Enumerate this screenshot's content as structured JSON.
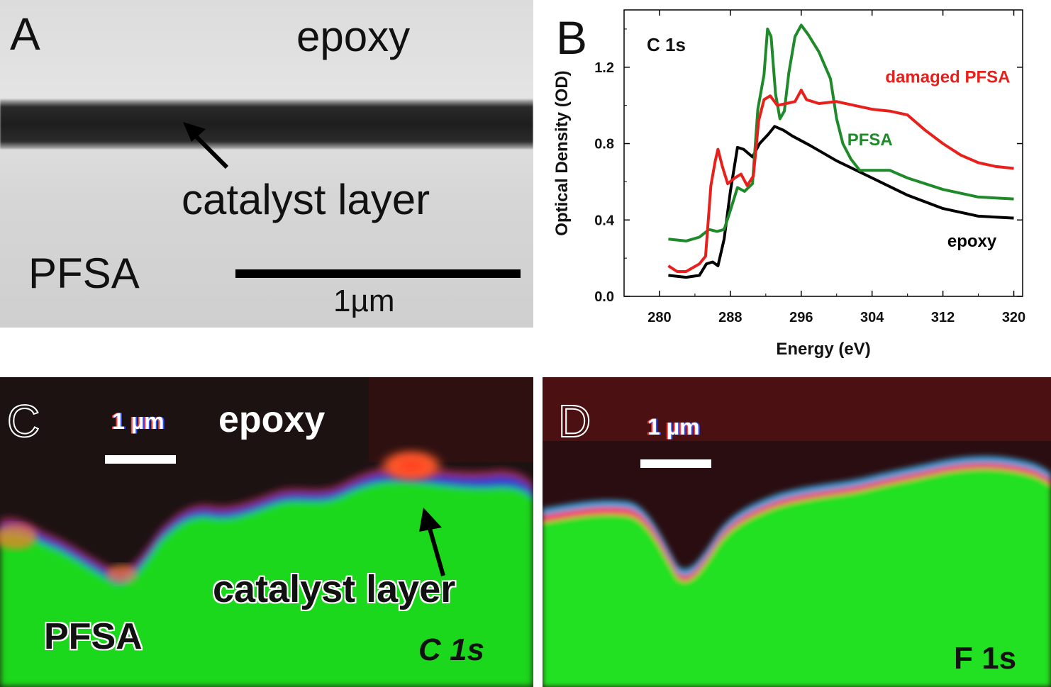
{
  "panel_a": {
    "letter": "A",
    "label_top": "epoxy",
    "label_layer": "catalyst layer",
    "label_bottom": "PFSA",
    "scale_label": "1µm"
  },
  "panel_c": {
    "letter": "C",
    "scale_label": "1 µm",
    "label_top": "epoxy",
    "label_layer": "catalyst layer",
    "label_bottom": "PFSA",
    "edge_label": "C 1s"
  },
  "panel_d": {
    "letter": "D",
    "scale_label": "1 µm",
    "edge_label": "F 1s"
  },
  "chart_data": {
    "type": "line",
    "panel_letter": "B",
    "annotation": "C 1s",
    "xlabel": "Energy (eV)",
    "ylabel": "Optical Density (OD)",
    "xlim": [
      276,
      321
    ],
    "ylim": [
      0.0,
      1.5
    ],
    "xticks": [
      280,
      288,
      296,
      304,
      312,
      320
    ],
    "yticks": [
      0.0,
      0.4,
      0.8,
      1.2
    ],
    "grid": false,
    "series": [
      {
        "name": "epoxy",
        "color": "#000000",
        "points": [
          [
            281,
            0.11
          ],
          [
            283,
            0.1
          ],
          [
            284.5,
            0.11
          ],
          [
            285.3,
            0.17
          ],
          [
            286,
            0.18
          ],
          [
            286.6,
            0.16
          ],
          [
            287.3,
            0.3
          ],
          [
            288,
            0.55
          ],
          [
            288.8,
            0.78
          ],
          [
            289.5,
            0.77
          ],
          [
            290.5,
            0.73
          ],
          [
            291.3,
            0.8
          ],
          [
            292.3,
            0.85
          ],
          [
            293,
            0.89
          ],
          [
            294,
            0.87
          ],
          [
            295,
            0.84
          ],
          [
            297,
            0.79
          ],
          [
            300,
            0.71
          ],
          [
            304,
            0.62
          ],
          [
            308,
            0.53
          ],
          [
            312,
            0.46
          ],
          [
            316,
            0.42
          ],
          [
            320,
            0.41
          ]
        ]
      },
      {
        "name": "PFSA",
        "color": "#1e8a2a",
        "points": [
          [
            281,
            0.3
          ],
          [
            283,
            0.29
          ],
          [
            284.5,
            0.31
          ],
          [
            285.6,
            0.35
          ],
          [
            286.5,
            0.34
          ],
          [
            287.3,
            0.35
          ],
          [
            288,
            0.45
          ],
          [
            288.8,
            0.57
          ],
          [
            289.6,
            0.55
          ],
          [
            290.5,
            0.59
          ],
          [
            291.1,
            0.98
          ],
          [
            291.8,
            1.16
          ],
          [
            292.2,
            1.4
          ],
          [
            292.6,
            1.36
          ],
          [
            293.1,
            1.06
          ],
          [
            293.6,
            0.93
          ],
          [
            294.1,
            0.97
          ],
          [
            294.6,
            1.17
          ],
          [
            295.3,
            1.36
          ],
          [
            296,
            1.42
          ],
          [
            296.8,
            1.37
          ],
          [
            298,
            1.28
          ],
          [
            299.3,
            1.14
          ],
          [
            300,
            0.93
          ],
          [
            300.7,
            0.8
          ],
          [
            301.6,
            0.72
          ],
          [
            302.6,
            0.66
          ],
          [
            304,
            0.66
          ],
          [
            306,
            0.66
          ],
          [
            308,
            0.62
          ],
          [
            312,
            0.56
          ],
          [
            316,
            0.52
          ],
          [
            320,
            0.51
          ]
        ]
      },
      {
        "name": "damaged PFSA",
        "color": "#e8201c",
        "points": [
          [
            281,
            0.16
          ],
          [
            282,
            0.13
          ],
          [
            283,
            0.13
          ],
          [
            284.5,
            0.17
          ],
          [
            285.2,
            0.21
          ],
          [
            285.8,
            0.58
          ],
          [
            286.3,
            0.71
          ],
          [
            286.6,
            0.77
          ],
          [
            287.1,
            0.68
          ],
          [
            287.7,
            0.59
          ],
          [
            288.5,
            0.62
          ],
          [
            289.2,
            0.64
          ],
          [
            289.9,
            0.58
          ],
          [
            290.6,
            0.63
          ],
          [
            291.2,
            0.92
          ],
          [
            291.8,
            1.03
          ],
          [
            292.5,
            1.05
          ],
          [
            293.3,
            1.0
          ],
          [
            294.3,
            1.01
          ],
          [
            295.3,
            1.02
          ],
          [
            296,
            1.08
          ],
          [
            296.6,
            1.03
          ],
          [
            298,
            1.01
          ],
          [
            300,
            1.02
          ],
          [
            302,
            1.0
          ],
          [
            304,
            0.98
          ],
          [
            306,
            0.97
          ],
          [
            308,
            0.95
          ],
          [
            310,
            0.87
          ],
          [
            312,
            0.8
          ],
          [
            314,
            0.74
          ],
          [
            316,
            0.7
          ],
          [
            318,
            0.68
          ],
          [
            320,
            0.67
          ]
        ]
      }
    ],
    "series_labels": [
      {
        "text": "damaged PFSA",
        "x": 305.5,
        "y": 1.12,
        "color": "#e8201c"
      },
      {
        "text": "PFSA",
        "x": 301.2,
        "y": 0.79,
        "color": "#1e8a2a"
      },
      {
        "text": "epoxy",
        "x": 312.5,
        "y": 0.26,
        "color": "#000000"
      }
    ]
  }
}
